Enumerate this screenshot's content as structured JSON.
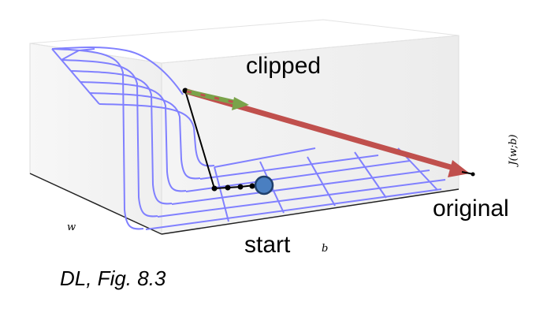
{
  "labels": {
    "clipped": "clipped",
    "original": "original",
    "start": "start",
    "axis_w": "w",
    "axis_b": "b",
    "axis_j": "J(w;b)"
  },
  "caption": "DL, Fig. 8.3",
  "colors": {
    "surface": "#8080ff",
    "clipped_arrow": "#7aa34a",
    "clipped_dash": "#c0504d",
    "original_arrow": "#c0504d",
    "path": "#000000",
    "start_marker": "#4a7fc1",
    "start_marker_edge": "#1f3f6b"
  }
}
